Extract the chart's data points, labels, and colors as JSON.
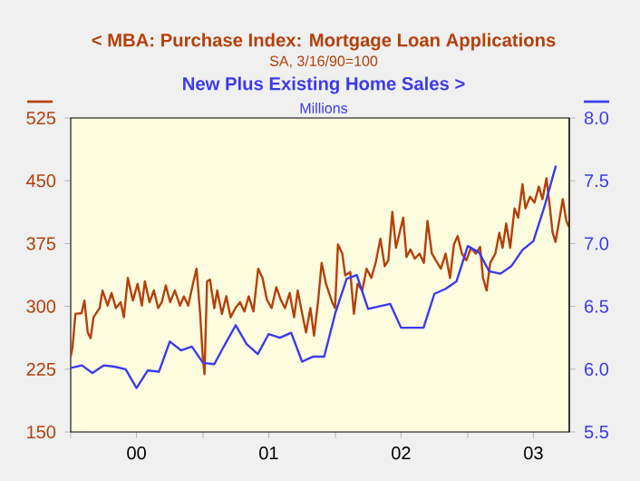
{
  "chart_data": {
    "type": "line",
    "annotations": [
      "SA, 3/16/90=100"
    ],
    "y2label": "Millions",
    "legend": "top",
    "xlim": [
      "2000-01-01",
      "2003-10-08"
    ],
    "xticks": [
      {
        "value": "2000-01-01",
        "label": null
      },
      {
        "value": "2000-07-01",
        "label": "00"
      },
      {
        "value": "2001-01-01",
        "label": null
      },
      {
        "value": "2001-07-01",
        "label": "01"
      },
      {
        "value": "2002-01-01",
        "label": null
      },
      {
        "value": "2002-07-01",
        "label": "02"
      },
      {
        "value": "2003-01-01",
        "label": null
      },
      {
        "value": "2003-07-01",
        "label": "03"
      }
    ],
    "ylim": [
      150,
      525
    ],
    "yticks": [
      150,
      225,
      300,
      375,
      450,
      525
    ],
    "y2lim": [
      5.5,
      8.0
    ],
    "y2ticks": [
      {
        "value": 5.5,
        "label": "5.5"
      },
      {
        "value": 6.0,
        "label": "6.0"
      },
      {
        "value": 6.5,
        "label": "6.5"
      },
      {
        "value": 7.0,
        "label": "7.0"
      },
      {
        "value": 7.5,
        "label": "7.5"
      },
      {
        "value": 8.0,
        "label": "8.0"
      }
    ],
    "series": [
      {
        "name": "< MBA: Purchase Index: Mortgage Loan Applications",
        "color": "#b5400a",
        "x": [
          "2000-01-01",
          "2000-01-06",
          "2000-01-14",
          "2000-01-31",
          "2000-02-08",
          "2000-02-17",
          "2000-02-25",
          "2000-03-04",
          "2000-03-21",
          "2000-03-29",
          "2000-04-12",
          "2000-04-23",
          "2000-05-05",
          "2000-05-18",
          "2000-05-27",
          "2000-06-07",
          "2000-06-21",
          "2000-07-04",
          "2000-07-16",
          "2000-07-24",
          "2000-08-06",
          "2000-08-18",
          "2000-08-30",
          "2000-09-09",
          "2000-09-20",
          "2000-10-02",
          "2000-10-15",
          "2000-10-29",
          "2000-11-09",
          "2000-11-21",
          "2000-12-04",
          "2000-12-14",
          "2000-12-24",
          "2000-12-31",
          "2001-01-05",
          "2001-01-12",
          "2001-01-20",
          "2001-02-01",
          "2001-02-09",
          "2001-02-22",
          "2001-03-06",
          "2001-03-18",
          "2001-03-31",
          "2001-04-13",
          "2001-04-25",
          "2001-05-07",
          "2001-05-20",
          "2001-06-02",
          "2001-06-14",
          "2001-06-26",
          "2001-07-09",
          "2001-07-22",
          "2001-08-03",
          "2001-08-15",
          "2001-08-28",
          "2001-09-09",
          "2001-09-19",
          "2001-09-30",
          "2001-10-12",
          "2001-10-24",
          "2001-11-03",
          "2001-11-14",
          "2001-11-24",
          "2001-12-06",
          "2001-12-23",
          "2001-12-31",
          "2002-01-08",
          "2002-01-20",
          "2002-01-28",
          "2002-02-11",
          "2002-02-21",
          "2002-03-03",
          "2002-03-16",
          "2002-03-28",
          "2002-04-10",
          "2002-04-22",
          "2002-05-05",
          "2002-05-17",
          "2002-05-27",
          "2002-06-07",
          "2002-06-17",
          "2002-06-27",
          "2002-07-07",
          "2002-07-16",
          "2002-07-27",
          "2002-08-08",
          "2002-08-21",
          "2002-09-02",
          "2002-09-12",
          "2002-09-24",
          "2002-10-05",
          "2002-10-19",
          "2002-11-01",
          "2002-11-13",
          "2002-11-24",
          "2002-12-04",
          "2002-12-16",
          "2002-12-28",
          "2003-01-10",
          "2003-01-23",
          "2003-02-04",
          "2003-02-12",
          "2003-02-22",
          "2003-03-04",
          "2003-03-18",
          "2003-03-29",
          "2003-04-07",
          "2003-04-17",
          "2003-04-28",
          "2003-05-10",
          "2003-05-20",
          "2003-06-01",
          "2003-06-09",
          "2003-06-22",
          "2003-07-04",
          "2003-07-16",
          "2003-07-26",
          "2003-08-06",
          "2003-08-15",
          "2003-08-23",
          "2003-08-31",
          "2003-09-10",
          "2003-09-20",
          "2003-09-30",
          "2003-10-07"
        ],
        "values": [
          240,
          251,
          291,
          292,
          307,
          269,
          262,
          287,
          298,
          319,
          301,
          316,
          298,
          305,
          287,
          334,
          307,
          327,
          301,
          330,
          305,
          319,
          298,
          305,
          325,
          305,
          319,
          301,
          312,
          301,
          327,
          345,
          291,
          240,
          219,
          330,
          332,
          298,
          319,
          291,
          312,
          287,
          298,
          305,
          294,
          312,
          294,
          345,
          334,
          308,
          298,
          323,
          308,
          298,
          316,
          287,
          319,
          294,
          269,
          298,
          265,
          305,
          352,
          327,
          305,
          298,
          374,
          363,
          337,
          341,
          291,
          327,
          319,
          345,
          334,
          352,
          381,
          348,
          355,
          413,
          370,
          388,
          406,
          359,
          368,
          357,
          363,
          352,
          402,
          363,
          355,
          345,
          363,
          334,
          374,
          384,
          363,
          355,
          370,
          363,
          371,
          334,
          319,
          352,
          363,
          388,
          370,
          399,
          370,
          417,
          406,
          446,
          417,
          431,
          424,
          443,
          428,
          453,
          420,
          388,
          377,
          402,
          428,
          402,
          395
        ]
      },
      {
        "name": "New Plus Existing Home Sales  >",
        "color": "#3b3bf0",
        "axis": "y2",
        "x": [
          "2000-01",
          "2000-02",
          "2000-03",
          "2000-04",
          "2000-05",
          "2000-06",
          "2000-07",
          "2000-08",
          "2000-09",
          "2000-10",
          "2000-11",
          "2000-12",
          "2001-01",
          "2001-02",
          "2001-03",
          "2001-04",
          "2001-05",
          "2001-06",
          "2001-07",
          "2001-08",
          "2001-09",
          "2001-10",
          "2001-11",
          "2001-12",
          "2002-01",
          "2002-02",
          "2002-03",
          "2002-04",
          "2002-05",
          "2002-06",
          "2002-07",
          "2002-08",
          "2002-09",
          "2002-10",
          "2002-11",
          "2002-12",
          "2003-01",
          "2003-02",
          "2003-03",
          "2003-04",
          "2003-05",
          "2003-06",
          "2003-07",
          "2003-08",
          "2003-09"
        ],
        "values": [
          6.01,
          6.03,
          5.97,
          6.03,
          6.02,
          6.0,
          5.85,
          5.99,
          5.98,
          6.22,
          6.15,
          6.18,
          6.05,
          6.04,
          6.19,
          6.35,
          6.2,
          6.12,
          6.28,
          6.25,
          6.29,
          6.06,
          6.1,
          6.1,
          6.45,
          6.72,
          6.75,
          6.48,
          6.5,
          6.52,
          6.33,
          6.33,
          6.33,
          6.6,
          6.64,
          6.7,
          6.98,
          6.93,
          6.78,
          6.76,
          6.82,
          6.95,
          7.02,
          7.3,
          7.62
        ]
      }
    ]
  }
}
